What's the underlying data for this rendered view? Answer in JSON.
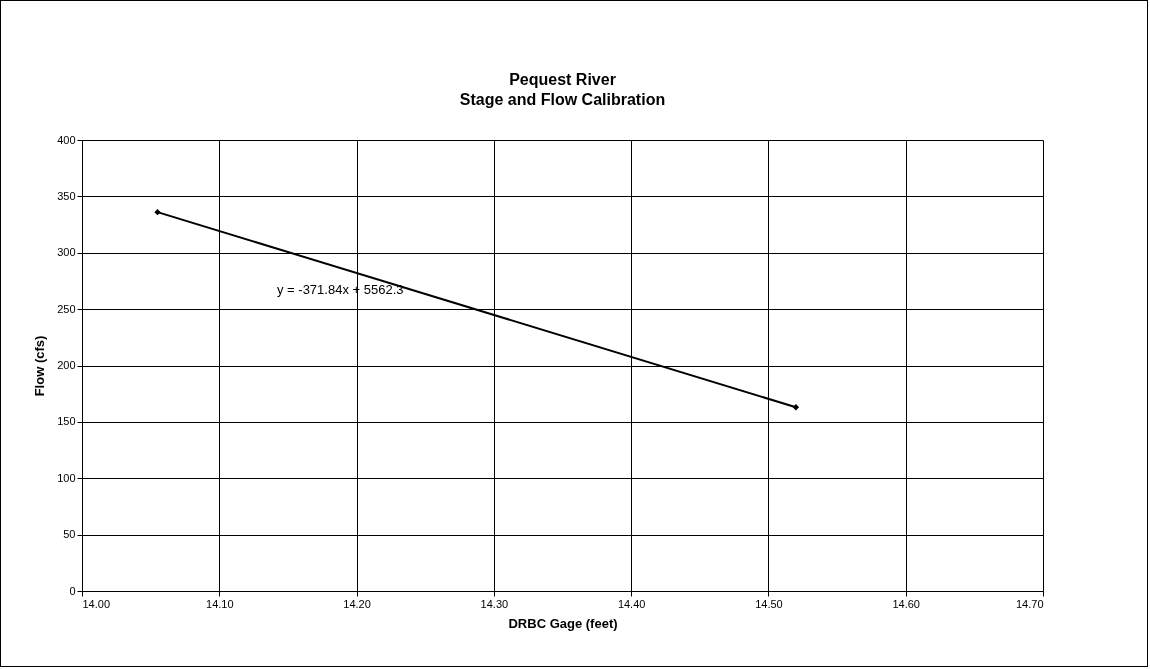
{
  "chart_data": {
    "type": "line",
    "title": "Pequest River",
    "subtitle": "Stage and Flow Calibration",
    "xlabel": "DRBC Gage (feet)",
    "ylabel": "Flow (cfs)",
    "x": [
      14.055,
      14.52
    ],
    "series": [
      {
        "values": [
          336,
          163
        ],
        "color": "#000000"
      }
    ],
    "marker": "diamond",
    "grid": true,
    "xlim": [
      14.0,
      14.7
    ],
    "xticks": [
      {
        "value": 14.0,
        "label": "14.00"
      },
      {
        "value": 14.1,
        "label": "14.10"
      },
      {
        "value": 14.2,
        "label": "14.20"
      },
      {
        "value": 14.3,
        "label": "14.30"
      },
      {
        "value": 14.4,
        "label": "14.40"
      },
      {
        "value": 14.5,
        "label": "14.50"
      },
      {
        "value": 14.6,
        "label": "14.60"
      },
      {
        "value": 14.7,
        "label": "14.70"
      }
    ],
    "ylim": [
      0,
      400
    ],
    "yticks": [
      0,
      50,
      100,
      150,
      200,
      250,
      300,
      350,
      400
    ],
    "annotations": [
      "y = -371.84x + 5562.3"
    ]
  }
}
